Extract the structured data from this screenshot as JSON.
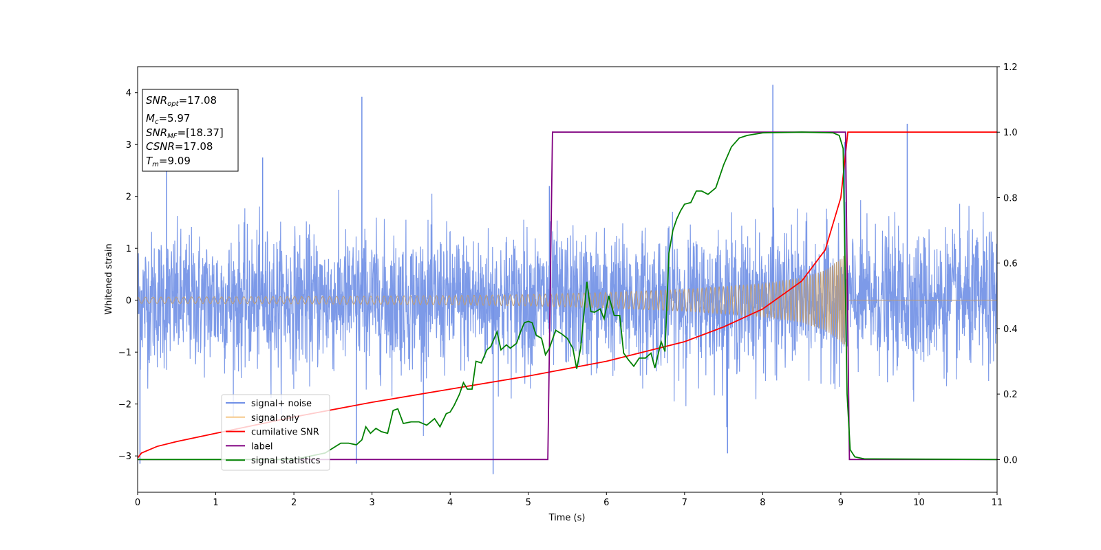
{
  "chart_data": {
    "type": "line",
    "xlabel": "Time (s)",
    "ylabel_left": "Whitened strain",
    "xlim": [
      0,
      11
    ],
    "ylim_left": [
      -3.7,
      4.5
    ],
    "ylim_right": [
      -0.1,
      1.2
    ],
    "xticks": [
      0,
      1,
      2,
      3,
      4,
      5,
      6,
      7,
      8,
      9,
      10,
      11
    ],
    "yticks_left": [
      -3,
      -2,
      -1,
      0,
      1,
      2,
      3,
      4
    ],
    "yticks_right": [
      0.0,
      0.2,
      0.4,
      0.6,
      0.8,
      1.0,
      1.2
    ],
    "grid": false,
    "info_box": [
      {
        "base": "SNR",
        "sub": "opt",
        "rest": "=17.08"
      },
      {
        "base": "M",
        "sub": "c",
        "rest": "=5.97"
      },
      {
        "base": "SNR",
        "sub": "MF",
        "rest": "=[18.37]"
      },
      {
        "base": "CSNR",
        "sub": "",
        "rest": "=17.08"
      },
      {
        "base": "T",
        "sub": "m",
        "rest": "=9.09"
      }
    ],
    "legend": {
      "placement": "lower-left",
      "entries": [
        {
          "label": "signal+ noise",
          "color": "#6f8fe6"
        },
        {
          "label": "signal only",
          "color": "#f5c88a"
        },
        {
          "label": "cumilative SNR",
          "color": "#ff0000"
        },
        {
          "label": "label",
          "color": "#800080"
        },
        {
          "label": "signal statistics",
          "color": "#008000"
        }
      ]
    },
    "series": [
      {
        "name": "signal+ noise",
        "axis": "left",
        "color": "#6f8fe6",
        "description_kind": "noise",
        "noise_band": [
          -1.3,
          1.3
        ],
        "x_range": [
          0,
          11
        ],
        "spikes": [
          {
            "x": 0.37,
            "y": 2.5
          },
          {
            "x": 1.6,
            "y": 2.75
          },
          {
            "x": 2.87,
            "y": 3.92
          },
          {
            "x": 4.55,
            "y": -3.35
          },
          {
            "x": 5.27,
            "y": 2.2
          },
          {
            "x": 8.13,
            "y": 4.15
          },
          {
            "x": 9.05,
            "y": 3.05
          },
          {
            "x": 9.85,
            "y": 3.4
          },
          {
            "x": 0.03,
            "y": -3.15
          },
          {
            "x": 2.8,
            "y": -3.15
          },
          {
            "x": 7.55,
            "y": -2.95
          }
        ]
      },
      {
        "name": "signal only",
        "axis": "left",
        "color": "#f5c88a",
        "description_kind": "chirp",
        "envelope": [
          [
            0,
            0.06
          ],
          [
            2,
            0.07
          ],
          [
            4,
            0.09
          ],
          [
            5,
            0.11
          ],
          [
            6,
            0.15
          ],
          [
            7,
            0.21
          ],
          [
            8,
            0.32
          ],
          [
            8.5,
            0.43
          ],
          [
            8.8,
            0.58
          ],
          [
            9.0,
            0.8
          ],
          [
            9.08,
            0.95
          ]
        ],
        "after_merger": [
          [
            9.1,
            0
          ],
          [
            11,
            0
          ]
        ]
      },
      {
        "name": "cumilative SNR",
        "axis": "right",
        "color": "#ff0000",
        "points": [
          [
            0,
            0.005
          ],
          [
            0.05,
            0.02
          ],
          [
            0.25,
            0.04
          ],
          [
            0.5,
            0.055
          ],
          [
            1,
            0.08
          ],
          [
            2,
            0.13
          ],
          [
            3,
            0.175
          ],
          [
            4,
            0.215
          ],
          [
            5,
            0.255
          ],
          [
            6,
            0.3
          ],
          [
            7,
            0.36
          ],
          [
            7.5,
            0.405
          ],
          [
            8,
            0.46
          ],
          [
            8.5,
            0.545
          ],
          [
            8.8,
            0.64
          ],
          [
            9.0,
            0.8
          ],
          [
            9.09,
            1.0
          ],
          [
            11,
            1.0
          ]
        ]
      },
      {
        "name": "label",
        "axis": "right",
        "color": "#800080",
        "points": [
          [
            0,
            0.0
          ],
          [
            5.25,
            0.0
          ],
          [
            5.31,
            1.0
          ],
          [
            9.06,
            1.0
          ],
          [
            9.11,
            0.0
          ],
          [
            11,
            0.0
          ]
        ]
      },
      {
        "name": "signal statistics",
        "axis": "right",
        "color": "#008000",
        "points": [
          [
            0,
            0.0
          ],
          [
            2.0,
            0.0
          ],
          [
            2.2,
            0.01
          ],
          [
            2.4,
            0.02
          ],
          [
            2.5,
            0.035
          ],
          [
            2.6,
            0.05
          ],
          [
            2.7,
            0.05
          ],
          [
            2.8,
            0.045
          ],
          [
            2.87,
            0.06
          ],
          [
            2.92,
            0.1
          ],
          [
            2.98,
            0.08
          ],
          [
            3.05,
            0.095
          ],
          [
            3.12,
            0.085
          ],
          [
            3.2,
            0.08
          ],
          [
            3.27,
            0.15
          ],
          [
            3.33,
            0.155
          ],
          [
            3.4,
            0.11
          ],
          [
            3.5,
            0.115
          ],
          [
            3.6,
            0.115
          ],
          [
            3.7,
            0.105
          ],
          [
            3.8,
            0.125
          ],
          [
            3.87,
            0.1
          ],
          [
            3.95,
            0.14
          ],
          [
            4.0,
            0.145
          ],
          [
            4.05,
            0.165
          ],
          [
            4.12,
            0.2
          ],
          [
            4.17,
            0.235
          ],
          [
            4.22,
            0.215
          ],
          [
            4.28,
            0.215
          ],
          [
            4.33,
            0.3
          ],
          [
            4.4,
            0.295
          ],
          [
            4.47,
            0.335
          ],
          [
            4.52,
            0.345
          ],
          [
            4.6,
            0.39
          ],
          [
            4.65,
            0.335
          ],
          [
            4.72,
            0.35
          ],
          [
            4.77,
            0.34
          ],
          [
            4.85,
            0.355
          ],
          [
            4.9,
            0.39
          ],
          [
            4.95,
            0.418
          ],
          [
            5.0,
            0.422
          ],
          [
            5.05,
            0.418
          ],
          [
            5.1,
            0.38
          ],
          [
            5.17,
            0.37
          ],
          [
            5.22,
            0.32
          ],
          [
            5.27,
            0.34
          ],
          [
            5.35,
            0.395
          ],
          [
            5.42,
            0.385
          ],
          [
            5.5,
            0.37
          ],
          [
            5.57,
            0.34
          ],
          [
            5.62,
            0.277
          ],
          [
            5.67,
            0.34
          ],
          [
            5.75,
            0.543
          ],
          [
            5.8,
            0.452
          ],
          [
            5.85,
            0.45
          ],
          [
            5.92,
            0.46
          ],
          [
            5.97,
            0.43
          ],
          [
            6.03,
            0.5
          ],
          [
            6.1,
            0.44
          ],
          [
            6.17,
            0.44
          ],
          [
            6.22,
            0.325
          ],
          [
            6.28,
            0.305
          ],
          [
            6.35,
            0.285
          ],
          [
            6.42,
            0.31
          ],
          [
            6.5,
            0.31
          ],
          [
            6.57,
            0.325
          ],
          [
            6.62,
            0.28
          ],
          [
            6.7,
            0.36
          ],
          [
            6.75,
            0.33
          ],
          [
            6.8,
            0.63
          ],
          [
            6.85,
            0.7
          ],
          [
            6.9,
            0.735
          ],
          [
            6.95,
            0.76
          ],
          [
            7.0,
            0.78
          ],
          [
            7.08,
            0.785
          ],
          [
            7.15,
            0.82
          ],
          [
            7.22,
            0.82
          ],
          [
            7.3,
            0.81
          ],
          [
            7.4,
            0.83
          ],
          [
            7.5,
            0.9
          ],
          [
            7.6,
            0.955
          ],
          [
            7.7,
            0.982
          ],
          [
            7.8,
            0.99
          ],
          [
            8.0,
            0.998
          ],
          [
            8.5,
            1.0
          ],
          [
            8.9,
            0.998
          ],
          [
            8.98,
            0.99
          ],
          [
            9.03,
            0.95
          ],
          [
            9.08,
            0.2
          ],
          [
            9.12,
            0.03
          ],
          [
            9.18,
            0.008
          ],
          [
            9.3,
            0.002
          ],
          [
            11,
            0.0
          ]
        ]
      }
    ]
  }
}
